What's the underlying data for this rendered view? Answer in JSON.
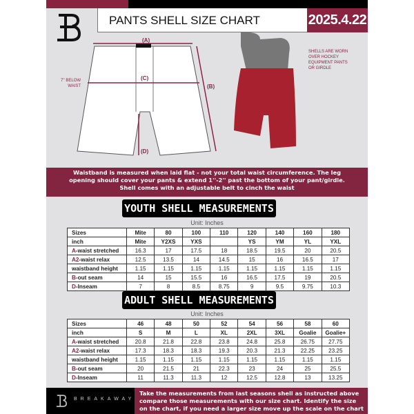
{
  "header": {
    "title": "PANTS SHELL SIZE CHART",
    "date": "2025.4.22",
    "brand_logo": "B"
  },
  "diagram": {
    "label_a": "(A)",
    "label_b": "(B)",
    "label_c": "(C)",
    "label_d": "(D)",
    "below_waist_note": [
      "7'' BELOW",
      "WAIST"
    ],
    "worn_note": [
      "SHELLS ARE WORN",
      "OVER HOCKEY",
      "EQUIPMENT PANTS",
      "OR GIRDLE"
    ]
  },
  "info_band": [
    "Waistband is measured when laid flat - not your total waist circumference. The leg",
    "opening should cover your pants & extend 1''-2'' past the bottom of your pant/girdle.",
    "Shell comes with an adjustable belt to cinch the waist"
  ],
  "youth": {
    "title": "YOUTH SHELL MEASUREMENTS",
    "unit": "Unit: Inches",
    "rows": [
      {
        "prefix": "",
        "label": "Sizes",
        "values": [
          "Mite",
          "80",
          "100",
          "110",
          "120",
          "140",
          "160",
          "180"
        ]
      },
      {
        "prefix": "",
        "label": "inch",
        "values": [
          "Mite",
          "Y2XS",
          "YXS",
          "",
          "YS",
          "YM",
          "YL",
          "YXL"
        ]
      },
      {
        "prefix": "A",
        "label": "-waist stretched",
        "values": [
          "16.3",
          "17",
          "17.5",
          "18",
          "18.5",
          "19.5",
          "20",
          "20.5"
        ]
      },
      {
        "prefix": "A2",
        "label": "-waist relax",
        "values": [
          "12.5",
          "13.5",
          "14",
          "14.5",
          "15",
          "16",
          "16.5",
          "17"
        ]
      },
      {
        "prefix": "",
        "label": "waistband height",
        "values": [
          "1.15",
          "1.15",
          "1.15",
          "1.15",
          "1.15",
          "1.15",
          "1.15",
          "1.15"
        ]
      },
      {
        "prefix": "B",
        "label": "-out seam",
        "values": [
          "14",
          "15",
          "15.5",
          "16",
          "16.5",
          "17.5",
          "19",
          "20.5"
        ]
      },
      {
        "prefix": "D",
        "label": "-Inseam",
        "values": [
          "7",
          "8",
          "8.5",
          "8.75",
          "9",
          "9.5",
          "9.75",
          "10.3"
        ]
      }
    ]
  },
  "adult": {
    "title": "ADULT SHELL MEASUREMENTS",
    "unit": "Unit: Inches",
    "rows": [
      {
        "prefix": "",
        "label": "Sizes",
        "values": [
          "46",
          "48",
          "50",
          "52",
          "54",
          "56",
          "58",
          "60"
        ]
      },
      {
        "prefix": "",
        "label": "inch",
        "values": [
          "S",
          "M",
          "L",
          "XL",
          "2XL",
          "3XL",
          "Goalie",
          "Goalie+"
        ]
      },
      {
        "prefix": "A",
        "label": "-waist stretched",
        "values": [
          "20.8",
          "21.8",
          "22.8",
          "23.8",
          "24.8",
          "25.8",
          "26.75",
          "27.75"
        ]
      },
      {
        "prefix": "A2",
        "label": "-waist relax",
        "values": [
          "17.3",
          "18.3",
          "18.3",
          "19.3",
          "20.3",
          "21.3",
          "22.25",
          "23.25"
        ]
      },
      {
        "prefix": "",
        "label": "waistband height",
        "values": [
          "1.15",
          "1.15",
          "1.15",
          "1.15",
          "1.15",
          "1.15",
          "1.15",
          "1.15"
        ]
      },
      {
        "prefix": "B",
        "label": "-out seam",
        "values": [
          "20",
          "21.5",
          "21",
          "22.3",
          "23",
          "24",
          "25",
          "25.5"
        ]
      },
      {
        "prefix": "D",
        "label": "-Inseam",
        "values": [
          "11",
          "11.3",
          "11.3",
          "12",
          "12.5",
          "12.8",
          "13",
          "13.25"
        ]
      }
    ]
  },
  "footer": {
    "brand": "BREAKAWAY",
    "text": [
      "Take the measurements from last seasons shell as instructed above",
      "compare those measurements  with our size chart. Identify the size",
      "on the chart, if you need a larger size move up the scale on the chart"
    ]
  },
  "colors": {
    "accent": "#8a2340",
    "background": "#e1e1e4",
    "pants": "#a8212e"
  }
}
